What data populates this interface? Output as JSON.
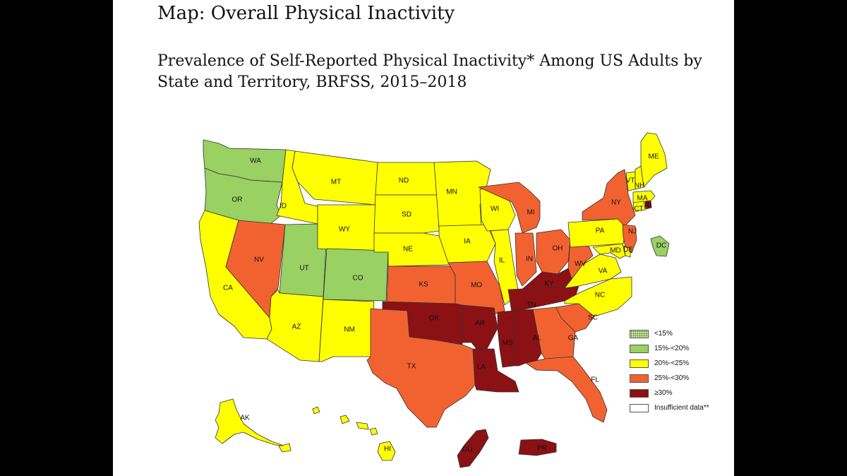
{
  "page": {
    "title": "Map: Overall Physical Inactivity",
    "subtitle": "Prevalence of Self-Reported Physical Inactivity* Among US Adults by State and Territory, BRFSS, 2015–2018"
  },
  "colors": {
    "lt15": "#d6e8a8",
    "c15_20": "#99d162",
    "c20_25": "#ffff00",
    "c25_30": "#f26230",
    "ge30": "#8b1114",
    "insufficient": "#ffffff"
  },
  "legend": [
    {
      "key": "lt15",
      "label": "<15%"
    },
    {
      "key": "c15_20",
      "label": "15%-<20%"
    },
    {
      "key": "c20_25",
      "label": "20%-<25%"
    },
    {
      "key": "c25_30",
      "label": "25%-<30%"
    },
    {
      "key": "ge30",
      "label": "≥30%"
    },
    {
      "key": "insufficient",
      "label": "Insufficient data**"
    }
  ],
  "states": [
    {
      "abbr": "WA",
      "category": "c15_20"
    },
    {
      "abbr": "OR",
      "category": "c15_20"
    },
    {
      "abbr": "CA",
      "category": "c20_25"
    },
    {
      "abbr": "ID",
      "category": "c20_25"
    },
    {
      "abbr": "NV",
      "category": "c25_30"
    },
    {
      "abbr": "UT",
      "category": "c15_20"
    },
    {
      "abbr": "AZ",
      "category": "c20_25"
    },
    {
      "abbr": "MT",
      "category": "c20_25"
    },
    {
      "abbr": "WY",
      "category": "c20_25"
    },
    {
      "abbr": "CO",
      "category": "c15_20"
    },
    {
      "abbr": "NM",
      "category": "c20_25"
    },
    {
      "abbr": "ND",
      "category": "c20_25"
    },
    {
      "abbr": "SD",
      "category": "c20_25"
    },
    {
      "abbr": "NE",
      "category": "c20_25"
    },
    {
      "abbr": "KS",
      "category": "c25_30"
    },
    {
      "abbr": "OK",
      "category": "ge30"
    },
    {
      "abbr": "TX",
      "category": "c25_30"
    },
    {
      "abbr": "MN",
      "category": "c20_25"
    },
    {
      "abbr": "IA",
      "category": "c20_25"
    },
    {
      "abbr": "MO",
      "category": "c25_30"
    },
    {
      "abbr": "AR",
      "category": "ge30"
    },
    {
      "abbr": "LA",
      "category": "ge30"
    },
    {
      "abbr": "WI",
      "category": "c20_25"
    },
    {
      "abbr": "IL",
      "category": "c20_25"
    },
    {
      "abbr": "MI",
      "category": "c25_30"
    },
    {
      "abbr": "IN",
      "category": "c25_30"
    },
    {
      "abbr": "OH",
      "category": "c25_30"
    },
    {
      "abbr": "KY",
      "category": "ge30"
    },
    {
      "abbr": "TN",
      "category": "ge30"
    },
    {
      "abbr": "MS",
      "category": "ge30"
    },
    {
      "abbr": "AL",
      "category": "ge30"
    },
    {
      "abbr": "GA",
      "category": "c25_30"
    },
    {
      "abbr": "FL",
      "category": "c25_30"
    },
    {
      "abbr": "SC",
      "category": "c25_30"
    },
    {
      "abbr": "NC",
      "category": "c20_25"
    },
    {
      "abbr": "VA",
      "category": "c20_25"
    },
    {
      "abbr": "WV",
      "category": "c25_30"
    },
    {
      "abbr": "PA",
      "category": "c20_25"
    },
    {
      "abbr": "NY",
      "category": "c25_30"
    },
    {
      "abbr": "NJ",
      "category": "c25_30"
    },
    {
      "abbr": "DE",
      "category": "c20_25"
    },
    {
      "abbr": "MD",
      "category": "c20_25"
    },
    {
      "abbr": "DC",
      "category": "c15_20"
    },
    {
      "abbr": "CT",
      "category": "c20_25"
    },
    {
      "abbr": "RI",
      "category": "ge30"
    },
    {
      "abbr": "MA",
      "category": "c20_25"
    },
    {
      "abbr": "VT",
      "category": "c20_25"
    },
    {
      "abbr": "NH",
      "category": "c20_25"
    },
    {
      "abbr": "ME",
      "category": "c20_25"
    },
    {
      "abbr": "AK",
      "category": "c20_25"
    },
    {
      "abbr": "HI",
      "category": "c20_25"
    },
    {
      "abbr": "GU",
      "category": "ge30"
    },
    {
      "abbr": "PR",
      "category": "ge30"
    }
  ]
}
